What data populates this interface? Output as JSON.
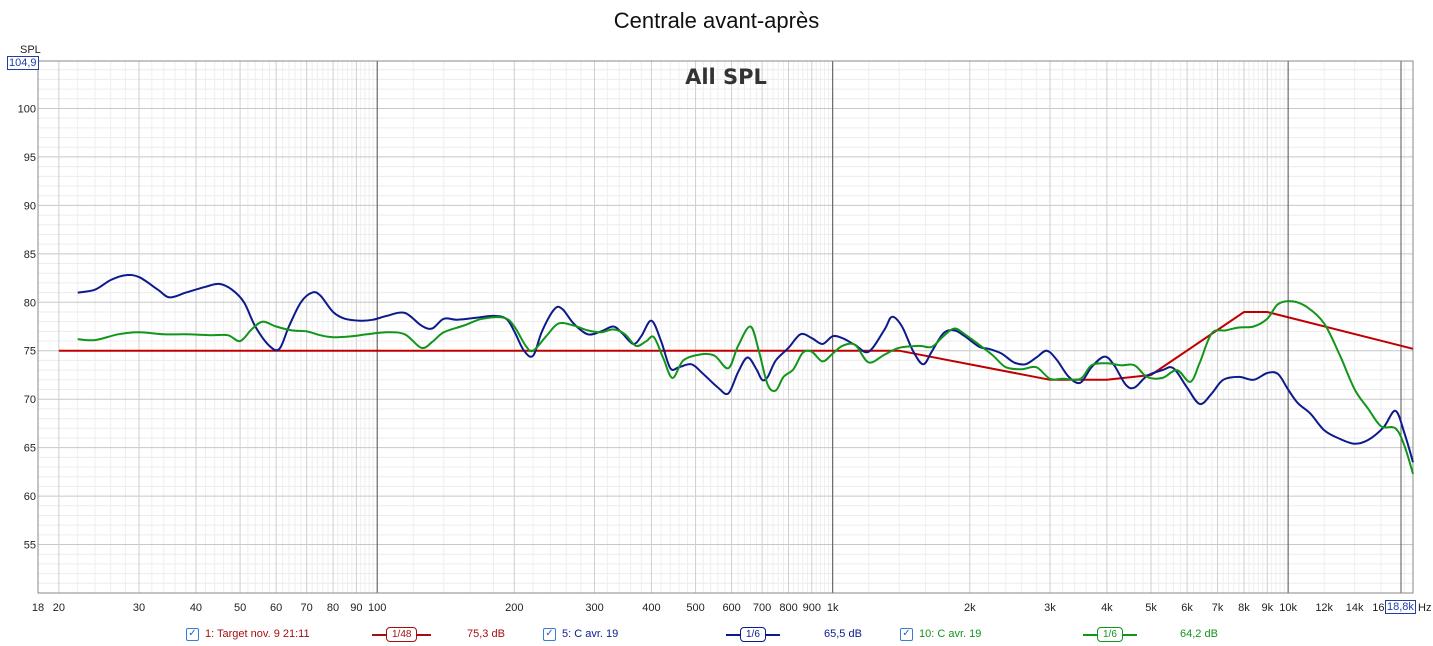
{
  "chart_data": {
    "type": "line",
    "title": "Centrale avant-après",
    "subtitle": "All SPL",
    "ylabel": "SPL",
    "xlabel": "Hz",
    "x_scale": "log",
    "xlim": [
      18,
      18800
    ],
    "ylim": [
      50,
      104.9
    ],
    "y_top_label": "104,9",
    "x_right_label": "18,8k",
    "y_ticks": [
      55,
      60,
      65,
      70,
      75,
      80,
      85,
      90,
      95,
      100
    ],
    "x_ticks": [
      {
        "v": 18,
        "t": "18"
      },
      {
        "v": 20,
        "t": "20"
      },
      {
        "v": 30,
        "t": "30"
      },
      {
        "v": 40,
        "t": "40"
      },
      {
        "v": 50,
        "t": "50"
      },
      {
        "v": 60,
        "t": "60"
      },
      {
        "v": 70,
        "t": "70"
      },
      {
        "v": 80,
        "t": "80"
      },
      {
        "v": 90,
        "t": "90"
      },
      {
        "v": 100,
        "t": "100"
      },
      {
        "v": 200,
        "t": "200"
      },
      {
        "v": 300,
        "t": "300"
      },
      {
        "v": 400,
        "t": "400"
      },
      {
        "v": 500,
        "t": "500"
      },
      {
        "v": 600,
        "t": "600"
      },
      {
        "v": 700,
        "t": "700"
      },
      {
        "v": 800,
        "t": "800"
      },
      {
        "v": 900,
        "t": "900"
      },
      {
        "v": 1000,
        "t": "1k"
      },
      {
        "v": 2000,
        "t": "2k"
      },
      {
        "v": 3000,
        "t": "3k"
      },
      {
        "v": 4000,
        "t": "4k"
      },
      {
        "v": 5000,
        "t": "5k"
      },
      {
        "v": 6000,
        "t": "6k"
      },
      {
        "v": 7000,
        "t": "7k"
      },
      {
        "v": 8000,
        "t": "8k"
      },
      {
        "v": 9000,
        "t": "9k"
      },
      {
        "v": 10000,
        "t": "10k"
      },
      {
        "v": 12000,
        "t": "12k"
      },
      {
        "v": 14000,
        "t": "14k"
      },
      {
        "v": 16000,
        "t": "16k"
      }
    ],
    "grid": true,
    "series": [
      {
        "name": "1: Target nov. 9 21:11",
        "color": "#c00000",
        "smoothing": "1/48",
        "level": "75,3 dB",
        "points": [
          [
            20,
            75
          ],
          [
            1400,
            75
          ],
          [
            3000,
            72
          ],
          [
            4000,
            72
          ],
          [
            5000,
            72.5
          ],
          [
            8000,
            79
          ],
          [
            9000,
            79
          ],
          [
            18800,
            75.2
          ]
        ]
      },
      {
        "name": "5: C avr. 19",
        "color": "#0d1a8c",
        "smoothing": "1/6",
        "level": "65,5 dB",
        "points": [
          [
            22,
            81
          ],
          [
            24,
            81.3
          ],
          [
            26,
            82.3
          ],
          [
            28,
            82.8
          ],
          [
            30,
            82.6
          ],
          [
            33,
            81.3
          ],
          [
            35,
            80.5
          ],
          [
            38,
            81
          ],
          [
            42,
            81.6
          ],
          [
            45,
            81.9
          ],
          [
            48,
            81.3
          ],
          [
            51,
            80
          ],
          [
            54,
            77.5
          ],
          [
            58,
            75.5
          ],
          [
            61,
            75.2
          ],
          [
            64,
            77.5
          ],
          [
            68,
            80
          ],
          [
            72,
            81
          ],
          [
            75,
            80.7
          ],
          [
            80,
            79
          ],
          [
            85,
            78.3
          ],
          [
            92,
            78.1
          ],
          [
            98,
            78.2
          ],
          [
            105,
            78.6
          ],
          [
            115,
            78.9
          ],
          [
            125,
            77.6
          ],
          [
            132,
            77.3
          ],
          [
            140,
            78.3
          ],
          [
            150,
            78.2
          ],
          [
            165,
            78.4
          ],
          [
            180,
            78.6
          ],
          [
            192,
            78.3
          ],
          [
            200,
            77
          ],
          [
            210,
            75
          ],
          [
            220,
            74.5
          ],
          [
            230,
            77
          ],
          [
            245,
            79.3
          ],
          [
            255,
            79.3
          ],
          [
            270,
            77.8
          ],
          [
            290,
            76.7
          ],
          [
            310,
            77
          ],
          [
            330,
            77.5
          ],
          [
            345,
            76.8
          ],
          [
            365,
            75.7
          ],
          [
            380,
            76.5
          ],
          [
            400,
            78.1
          ],
          [
            420,
            76
          ],
          [
            440,
            73.2
          ],
          [
            460,
            73.3
          ],
          [
            490,
            73.6
          ],
          [
            520,
            72.6
          ],
          [
            560,
            71.2
          ],
          [
            590,
            70.6
          ],
          [
            620,
            72.8
          ],
          [
            650,
            74.3
          ],
          [
            680,
            73.1
          ],
          [
            700,
            72
          ],
          [
            720,
            72.3
          ],
          [
            750,
            74
          ],
          [
            800,
            75.3
          ],
          [
            850,
            76.7
          ],
          [
            900,
            76.3
          ],
          [
            950,
            75.7
          ],
          [
            1000,
            76.5
          ],
          [
            1050,
            76.3
          ],
          [
            1120,
            75.6
          ],
          [
            1200,
            74.9
          ],
          [
            1300,
            77.2
          ],
          [
            1350,
            78.5
          ],
          [
            1420,
            77.5
          ],
          [
            1500,
            75
          ],
          [
            1580,
            73.6
          ],
          [
            1650,
            74.9
          ],
          [
            1750,
            76.8
          ],
          [
            1850,
            77.1
          ],
          [
            1950,
            76.5
          ],
          [
            2100,
            75.4
          ],
          [
            2200,
            75.2
          ],
          [
            2350,
            74.7
          ],
          [
            2500,
            73.8
          ],
          [
            2650,
            73.6
          ],
          [
            2800,
            74.3
          ],
          [
            2950,
            75
          ],
          [
            3100,
            74.1
          ],
          [
            3300,
            72.3
          ],
          [
            3500,
            71.7
          ],
          [
            3700,
            73.3
          ],
          [
            3950,
            74.4
          ],
          [
            4150,
            73.5
          ],
          [
            4400,
            71.5
          ],
          [
            4600,
            71.2
          ],
          [
            4900,
            72.4
          ],
          [
            5300,
            73
          ],
          [
            5600,
            73.2
          ],
          [
            6000,
            71.2
          ],
          [
            6400,
            69.5
          ],
          [
            6800,
            70.6
          ],
          [
            7200,
            72
          ],
          [
            7800,
            72.3
          ],
          [
            8400,
            72
          ],
          [
            9000,
            72.7
          ],
          [
            9500,
            72.6
          ],
          [
            10000,
            71
          ],
          [
            10500,
            69.6
          ],
          [
            11200,
            68.5
          ],
          [
            12000,
            66.8
          ],
          [
            13000,
            65.9
          ],
          [
            14000,
            65.4
          ],
          [
            15000,
            65.8
          ],
          [
            16200,
            67.1
          ],
          [
            17200,
            68.8
          ],
          [
            18000,
            66.5
          ],
          [
            18800,
            63.5
          ]
        ]
      },
      {
        "name": "10: C avr. 19",
        "color": "#12951b",
        "smoothing": "1/6",
        "level": "64,2 dB",
        "points": [
          [
            22,
            76.2
          ],
          [
            24,
            76.1
          ],
          [
            27,
            76.7
          ],
          [
            30,
            76.9
          ],
          [
            34,
            76.7
          ],
          [
            38,
            76.7
          ],
          [
            43,
            76.6
          ],
          [
            47,
            76.6
          ],
          [
            50,
            76
          ],
          [
            53,
            77.2
          ],
          [
            56,
            78
          ],
          [
            60,
            77.5
          ],
          [
            65,
            77.1
          ],
          [
            70,
            77
          ],
          [
            75,
            76.6
          ],
          [
            80,
            76.4
          ],
          [
            88,
            76.5
          ],
          [
            95,
            76.7
          ],
          [
            105,
            76.9
          ],
          [
            115,
            76.7
          ],
          [
            125,
            75.3
          ],
          [
            132,
            75.9
          ],
          [
            140,
            76.9
          ],
          [
            155,
            77.6
          ],
          [
            170,
            78.3
          ],
          [
            190,
            78.4
          ],
          [
            200,
            77.5
          ],
          [
            212,
            75.5
          ],
          [
            220,
            75
          ],
          [
            235,
            76.5
          ],
          [
            250,
            77.8
          ],
          [
            270,
            77.6
          ],
          [
            290,
            77.1
          ],
          [
            310,
            76.9
          ],
          [
            330,
            77.2
          ],
          [
            350,
            76.7
          ],
          [
            370,
            75.5
          ],
          [
            390,
            76
          ],
          [
            405,
            76.4
          ],
          [
            425,
            74.2
          ],
          [
            445,
            72.2
          ],
          [
            470,
            74
          ],
          [
            510,
            74.6
          ],
          [
            550,
            74.5
          ],
          [
            590,
            73.2
          ],
          [
            620,
            75.5
          ],
          [
            660,
            77.5
          ],
          [
            690,
            74.8
          ],
          [
            720,
            71.5
          ],
          [
            750,
            70.9
          ],
          [
            780,
            72.3
          ],
          [
            820,
            73.1
          ],
          [
            860,
            74.8
          ],
          [
            900,
            74.9
          ],
          [
            950,
            73.9
          ],
          [
            1000,
            74.7
          ],
          [
            1050,
            75.5
          ],
          [
            1120,
            75.6
          ],
          [
            1200,
            73.8
          ],
          [
            1300,
            74.6
          ],
          [
            1400,
            75.3
          ],
          [
            1550,
            75.5
          ],
          [
            1650,
            75.4
          ],
          [
            1750,
            76.5
          ],
          [
            1850,
            77.3
          ],
          [
            1950,
            76.7
          ],
          [
            2100,
            75.6
          ],
          [
            2250,
            74.5
          ],
          [
            2400,
            73.3
          ],
          [
            2600,
            73.1
          ],
          [
            2800,
            73.3
          ],
          [
            3000,
            72.1
          ],
          [
            3200,
            72.1
          ],
          [
            3500,
            72.1
          ],
          [
            3700,
            73.5
          ],
          [
            4000,
            73.7
          ],
          [
            4300,
            73.5
          ],
          [
            4600,
            73.5
          ],
          [
            4900,
            72.3
          ],
          [
            5300,
            72.2
          ],
          [
            5700,
            73
          ],
          [
            6100,
            71.8
          ],
          [
            6400,
            73.8
          ],
          [
            6800,
            76.8
          ],
          [
            7300,
            77.1
          ],
          [
            7800,
            77.4
          ],
          [
            8400,
            77.5
          ],
          [
            9000,
            78.3
          ],
          [
            9500,
            79.8
          ],
          [
            10200,
            80.1
          ],
          [
            11000,
            79.5
          ],
          [
            12000,
            77.8
          ],
          [
            13000,
            74.5
          ],
          [
            14000,
            71
          ],
          [
            15000,
            69
          ],
          [
            16000,
            67.2
          ],
          [
            17200,
            67
          ],
          [
            18000,
            65.2
          ],
          [
            18800,
            62.3
          ]
        ]
      }
    ]
  },
  "legend": [
    {
      "label": "1: Target nov. 9 21:11",
      "smoothing": "1/48",
      "level": "75,3 dB",
      "color": "#a31010"
    },
    {
      "label": "5: C avr. 19",
      "smoothing": "1/6",
      "level": "65,5 dB",
      "color": "#0d1a8c"
    },
    {
      "label": "10: C avr. 19",
      "smoothing": "1/6",
      "level": "64,2 dB",
      "color": "#12951b"
    }
  ]
}
